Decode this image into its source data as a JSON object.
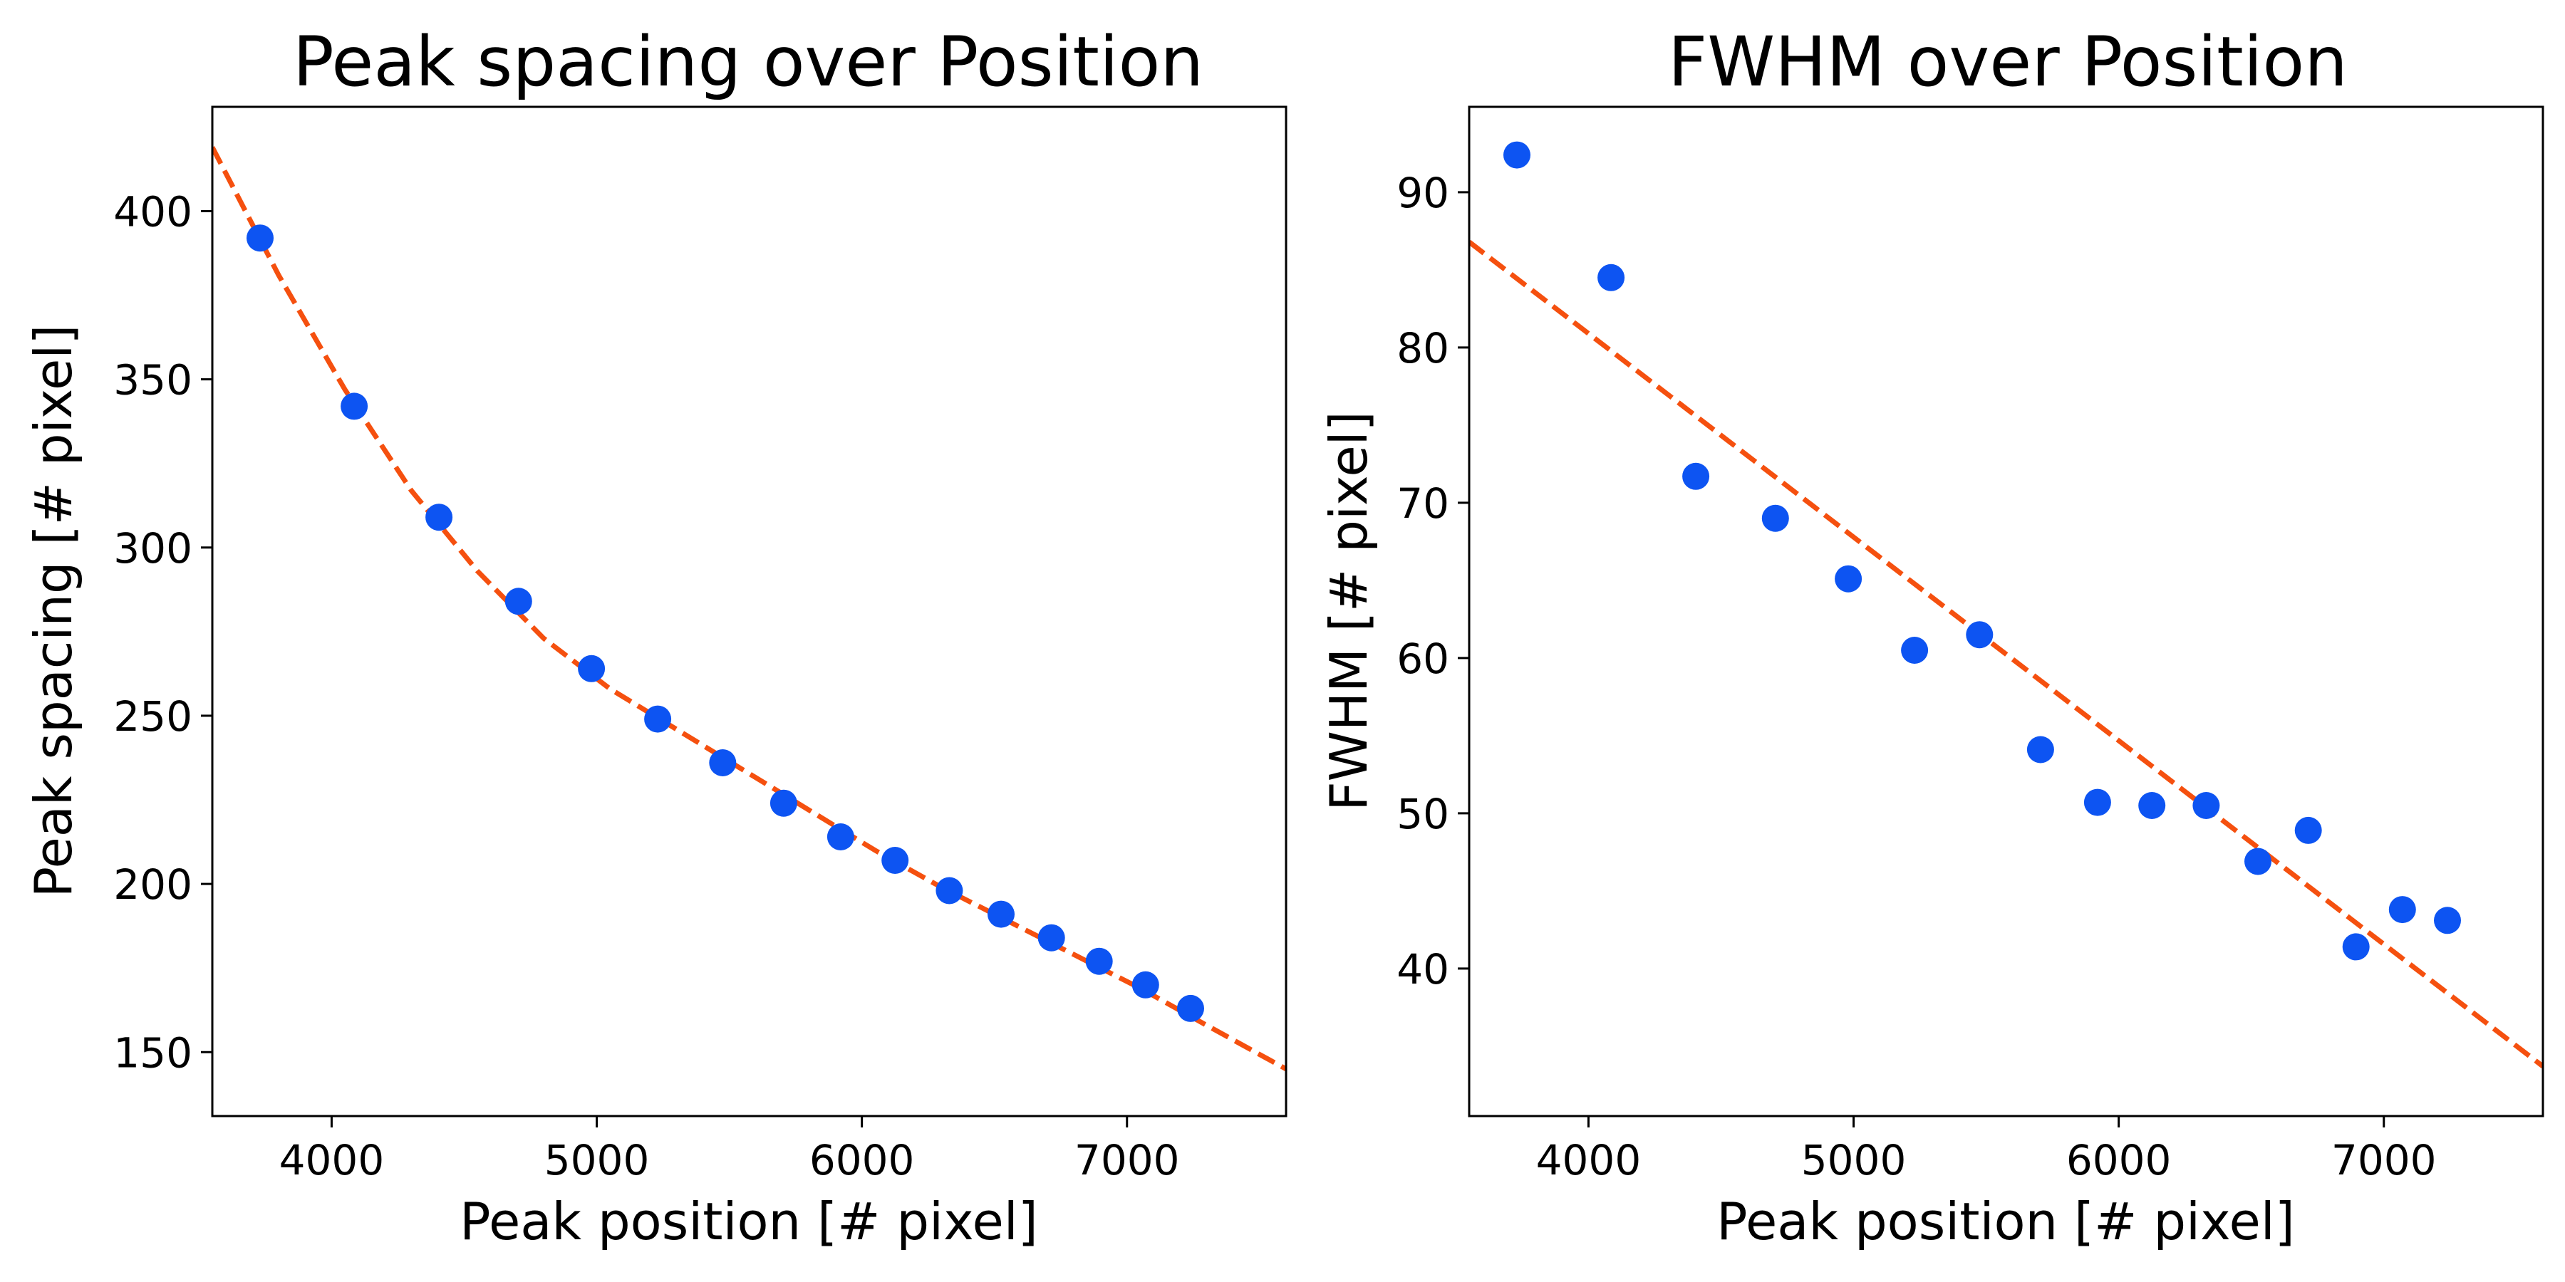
{
  "colors": {
    "marker": "#0d54f2",
    "fit": "#f5500f",
    "axes": "#000000",
    "background": "#ffffff"
  },
  "chart_data": [
    {
      "type": "scatter",
      "title": "Peak spacing over Position",
      "xlabel": "Peak position [# pixel]",
      "ylabel": "Peak spacing [# pixel]",
      "xlim": [
        3550,
        7600
      ],
      "ylim": [
        131,
        431
      ],
      "xticks": [
        4000,
        5000,
        6000,
        7000
      ],
      "yticks": [
        150,
        200,
        250,
        300,
        350,
        400
      ],
      "grid": false,
      "series": [
        {
          "kind": "points",
          "x": [
            3730,
            4085,
            4405,
            4705,
            4980,
            5230,
            5475,
            5705,
            5920,
            6125,
            6330,
            6525,
            6715,
            6895,
            7070,
            7240
          ],
          "y": [
            392,
            342,
            309,
            284,
            264,
            249,
            236,
            224,
            214,
            207,
            198,
            191,
            184,
            177,
            170,
            163
          ]
        },
        {
          "kind": "dashed-fit",
          "x": [
            3550,
            3800,
            4050,
            4300,
            4550,
            4800,
            5050,
            5300,
            5550,
            5800,
            6050,
            6300,
            6550,
            6800,
            7050,
            7300,
            7600
          ],
          "y": [
            419,
            381,
            347,
            317,
            293,
            273,
            258,
            246,
            234,
            222,
            210,
            199,
            189,
            179,
            169,
            158,
            145
          ]
        }
      ]
    },
    {
      "type": "scatter",
      "title": "FWHM over Position",
      "xlabel": "Peak position [# pixel]",
      "ylabel": "FWHM [# pixel]",
      "xlim": [
        3550,
        7600
      ],
      "ylim": [
        30.5,
        95.5
      ],
      "xticks": [
        4000,
        5000,
        6000,
        7000
      ],
      "yticks": [
        40,
        50,
        60,
        70,
        80,
        90
      ],
      "grid": false,
      "series": [
        {
          "kind": "points",
          "x": [
            3730,
            4085,
            4405,
            4705,
            4980,
            5230,
            5475,
            5705,
            5920,
            6125,
            6330,
            6525,
            6715,
            6895,
            7070,
            7240
          ],
          "y": [
            92.4,
            84.5,
            71.7,
            69.0,
            65.1,
            60.5,
            61.5,
            54.1,
            50.7,
            50.5,
            50.5,
            46.9,
            48.9,
            41.4,
            43.8,
            43.1
          ]
        },
        {
          "kind": "dashed-fit",
          "x": [
            3550,
            7600
          ],
          "y": [
            86.8,
            33.7
          ]
        }
      ]
    }
  ]
}
